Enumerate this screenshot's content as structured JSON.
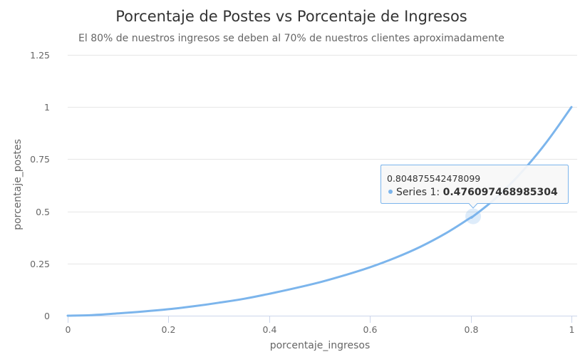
{
  "chart_data": {
    "type": "line",
    "title": "Porcentaje de Postes vs Porcentaje de Ingresos",
    "subtitle": "El 80% de nuestros ingresos se deben al 70% de nuestros clientes aproximadamente",
    "xlabel": "porcentaje_ingresos",
    "ylabel": "porcentaje_postes",
    "xlim": [
      0,
      1
    ],
    "ylim": [
      0,
      1.25
    ],
    "xticks": [
      "0",
      "0.2",
      "0.4",
      "0.6",
      "0.8",
      "1"
    ],
    "yticks": [
      "0",
      "0.25",
      "0.5",
      "0.75",
      "1",
      "1.25"
    ],
    "grid": "horizontal",
    "legend": "none",
    "series": [
      {
        "name": "Series 1",
        "color": "#7cb5ec",
        "x": [
          0,
          0.05,
          0.1,
          0.15,
          0.2,
          0.25,
          0.3,
          0.35,
          0.4,
          0.45,
          0.5,
          0.55,
          0.6,
          0.65,
          0.7,
          0.75,
          0.8,
          0.804875542478099,
          0.85,
          0.9,
          0.95,
          1
        ],
        "y": [
          0,
          0.003,
          0.011,
          0.02,
          0.031,
          0.045,
          0.062,
          0.081,
          0.105,
          0.131,
          0.16,
          0.194,
          0.232,
          0.277,
          0.33,
          0.394,
          0.47,
          0.476097468985304,
          0.564,
          0.685,
          0.83,
          1
        ]
      }
    ],
    "tooltip": {
      "x": "0.804875542478099",
      "series_name": "Series 1",
      "separator": ": ",
      "y": "0.476097468985304"
    }
  }
}
